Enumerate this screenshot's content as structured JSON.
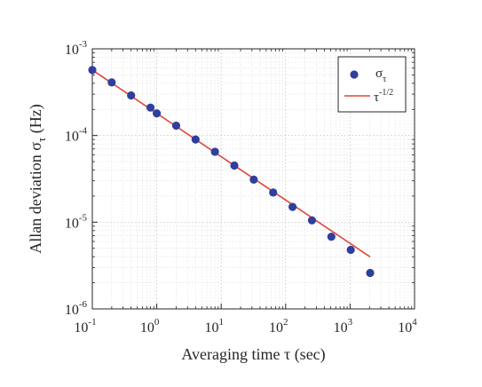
{
  "chart_data": {
    "type": "scatter",
    "x_scale": "log",
    "y_scale": "log",
    "xlim": [
      0.1,
      10000
    ],
    "ylim": [
      1e-06,
      0.001
    ],
    "grid": true,
    "legend_position": "top-right",
    "xlabel": "Averaging time τ (sec)",
    "ylabel": "Allan deviation σ_τ (Hz)",
    "x_tick_values": [
      0.1,
      1,
      10,
      100,
      1000,
      10000
    ],
    "x_tick_labels": [
      {
        "base": "10",
        "exp": "-1"
      },
      {
        "base": "10",
        "exp": "0"
      },
      {
        "base": "10",
        "exp": "1"
      },
      {
        "base": "10",
        "exp": "2"
      },
      {
        "base": "10",
        "exp": "3"
      },
      {
        "base": "10",
        "exp": "4"
      }
    ],
    "y_tick_values": [
      1e-06,
      1e-05,
      0.0001,
      0.001
    ],
    "y_tick_labels": [
      {
        "base": "10",
        "exp": "-6"
      },
      {
        "base": "10",
        "exp": "-5"
      },
      {
        "base": "10",
        "exp": "-4"
      },
      {
        "base": "10",
        "exp": "-3"
      }
    ],
    "series": [
      {
        "name": "σ_τ",
        "kind": "scatter",
        "color": "#2f3f9e",
        "x": [
          0.1,
          0.2,
          0.4,
          0.8,
          1,
          2,
          4,
          8,
          16,
          32,
          64,
          128,
          256,
          512,
          1024,
          2048
        ],
        "y": [
          0.00057,
          0.00041,
          0.00029,
          0.00021,
          0.00018,
          0.00013,
          9e-05,
          6.5e-05,
          4.5e-05,
          3.1e-05,
          2.2e-05,
          1.5e-05,
          1.05e-05,
          6.8e-06,
          4.8e-06,
          2.6e-06
        ]
      },
      {
        "name": "τ^-1/2",
        "kind": "line",
        "color": "#e0463c",
        "x": [
          0.1,
          2048
        ],
        "y": [
          0.00057,
          3.98e-06
        ]
      }
    ],
    "legend": [
      {
        "symbol": "σ",
        "sub": "τ",
        "sup": ""
      },
      {
        "symbol": "τ",
        "sub": "",
        "sup": "-1/2"
      }
    ]
  }
}
